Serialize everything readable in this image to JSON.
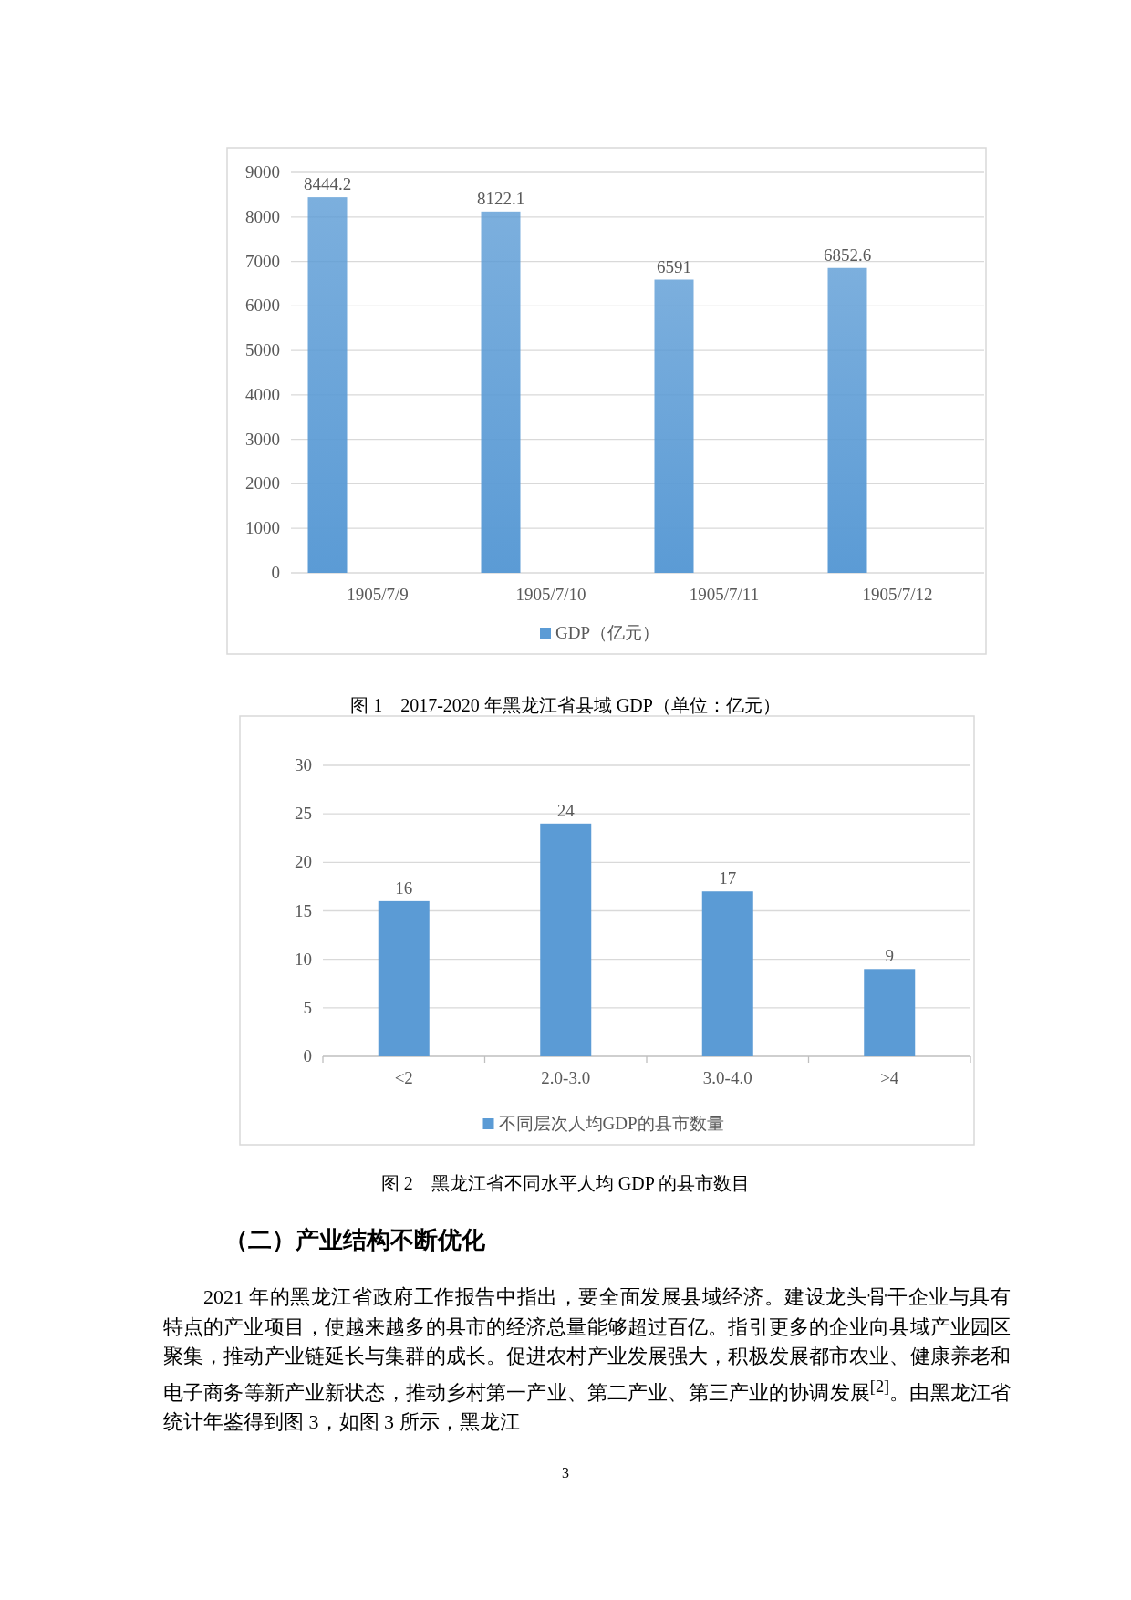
{
  "chart_data": [
    {
      "type": "bar",
      "categories": [
        "1905/7/9",
        "1905/7/10",
        "1905/7/11",
        "1905/7/12"
      ],
      "series": [
        {
          "name": "GDP（亿元）",
          "color": "#5b9bd5",
          "values": [
            8444.2,
            8122.1,
            6591,
            6852.6
          ]
        }
      ],
      "ylim": [
        0,
        9000
      ],
      "yticks": [
        0,
        1000,
        2000,
        3000,
        4000,
        5000,
        6000,
        7000,
        8000,
        9000
      ],
      "grid": "y",
      "legend": "bottom",
      "data_labels": true,
      "annotations": [
        "图 1　2017-2020 年黑龙江省县域 GDP（单位：亿元）"
      ]
    },
    {
      "type": "bar",
      "categories": [
        "<2",
        "2.0-3.0",
        "3.0-4.0",
        ">4"
      ],
      "series": [
        {
          "name": "不同层次人均GDP的县市数量",
          "color": "#5b9bd5",
          "values": [
            16,
            24,
            17,
            9
          ]
        }
      ],
      "ylim": [
        0,
        30
      ],
      "yticks": [
        0,
        5,
        10,
        15,
        20,
        25,
        30
      ],
      "grid": "y",
      "legend": "bottom",
      "data_labels": true,
      "annotations": [
        "图 2　黑龙江省不同水平人均 GDP 的县市数目",
        "（二）产业结构不断优化",
        "2021 年的黑龙江省政府工作报告中指出，要全面发展县域经济。建设龙头骨干企业与具有特点的产业项目，使越来越多的县市的经济总量能够超过百亿。指引更多的企业向县域产业园区聚集，推动产业链延长与集群的成长。促进农村产业发展强大，积极发展都市农业、健康养老和电子商务等新产业新状态，推动乡村第一产业、第二产业、第三产业的协调发展$^{[2]}$。由黑龙江省统计年鉴得到图 3，如图 3 所示，黑龙江",
        "3"
      ]
    }
  ]
}
